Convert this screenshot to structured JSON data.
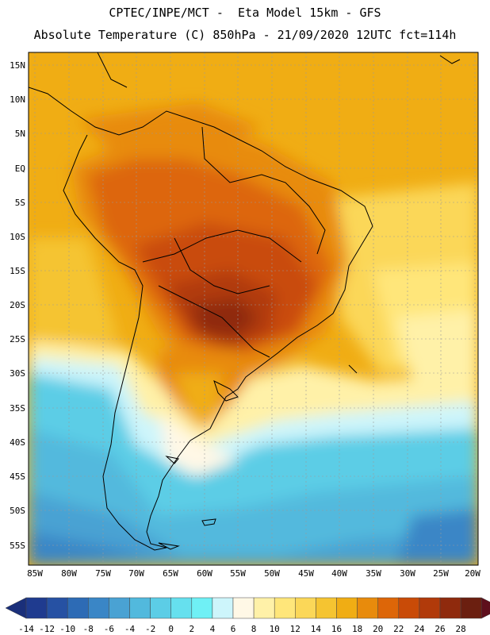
{
  "header": {
    "line1": "CPTEC/INPE/MCT -  Eta Model 15km - GFS",
    "line2": "Absolute Temperature (C) 850hPa - 21/09/2020 12UTC fct=114h"
  },
  "axes": {
    "lat_labels": [
      "15N",
      "10N",
      "5N",
      "EQ",
      "5S",
      "10S",
      "15S",
      "20S",
      "25S",
      "30S",
      "35S",
      "40S",
      "45S",
      "50S",
      "55S"
    ],
    "lon_labels": [
      "85W",
      "80W",
      "75W",
      "70W",
      "65W",
      "60W",
      "55W",
      "50W",
      "45W",
      "40W",
      "35W",
      "30W",
      "25W",
      "20W"
    ]
  },
  "colorbar": {
    "labels": [
      "-14",
      "-12",
      "-10",
      "-8",
      "-6",
      "-4",
      "-2",
      "0",
      "2",
      "4",
      "6",
      "8",
      "10",
      "12",
      "14",
      "16",
      "18",
      "20",
      "22",
      "24",
      "26",
      "28"
    ],
    "colors": [
      "#1f3b8f",
      "#2651a3",
      "#2d6bb5",
      "#3a86c6",
      "#4aa2d3",
      "#52b9dd",
      "#5ccde6",
      "#66e0ee",
      "#6ff0f5",
      "#cdf5fb",
      "#fff8e6",
      "#fff1a8",
      "#ffe67a",
      "#fbd758",
      "#f5c431",
      "#f0ad14",
      "#e88b0c",
      "#dd6608",
      "#c94b07",
      "#b13a0a",
      "#8f2a0d",
      "#6b1f10"
    ],
    "under_color": "#1a2f7a",
    "over_color": "#5e0f1c"
  }
}
